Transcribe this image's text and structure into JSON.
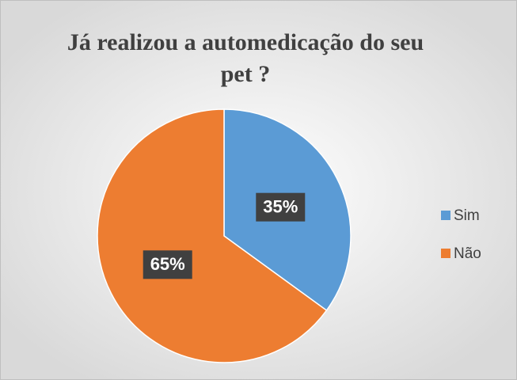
{
  "chart_data": {
    "type": "pie",
    "title": "Já realizou a automedicação do seu pet ?",
    "categories": [
      "Sim",
      "Não"
    ],
    "values": [
      35,
      65
    ],
    "value_labels": [
      "35%",
      "65%"
    ],
    "colors": [
      "#5b9bd5",
      "#ed7d31"
    ],
    "legend": "right"
  }
}
